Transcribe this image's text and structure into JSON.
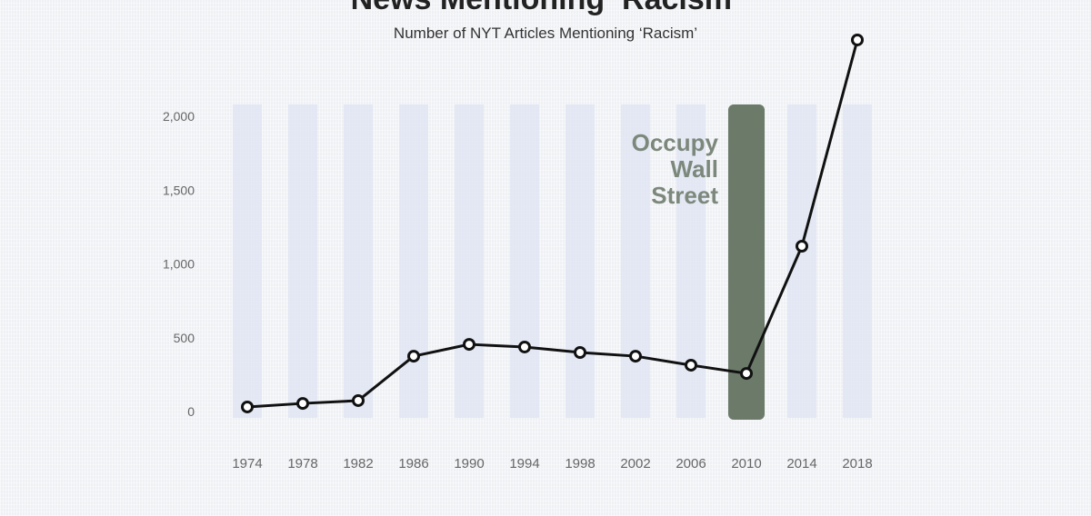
{
  "chart_data": {
    "type": "line",
    "title": "News Mentioning ‘Racism’",
    "subtitle": "Number of NYT Articles Mentioning ‘Racism’",
    "xlabel": "",
    "ylabel": "",
    "x": [
      1974,
      1978,
      1982,
      1986,
      1990,
      1994,
      1998,
      2002,
      2006,
      2010,
      2014,
      2018
    ],
    "x_tick_labels": [
      "1974",
      "1978",
      "1982",
      "1986",
      "1990",
      "1994",
      "1998",
      "2002",
      "2006",
      "2010",
      "2014",
      "2018"
    ],
    "values": [
      31,
      55,
      74,
      375,
      455,
      437,
      400,
      375,
      314,
      258,
      1120,
      2517
    ],
    "ylim": [
      0,
      2517
    ],
    "y_ticks": [
      0,
      500,
      1000,
      1500,
      2000
    ],
    "y_tick_labels": [
      "0",
      "500",
      "1,000",
      "1,500",
      "2,000"
    ],
    "grid": false,
    "annotation": {
      "year": 2010,
      "lines": [
        "Occupy",
        "Wall",
        "Street"
      ],
      "color": "#6b7a69"
    },
    "colors": {
      "line": "#111111",
      "band": "#dde3f2",
      "background": "#eef0f4"
    }
  }
}
